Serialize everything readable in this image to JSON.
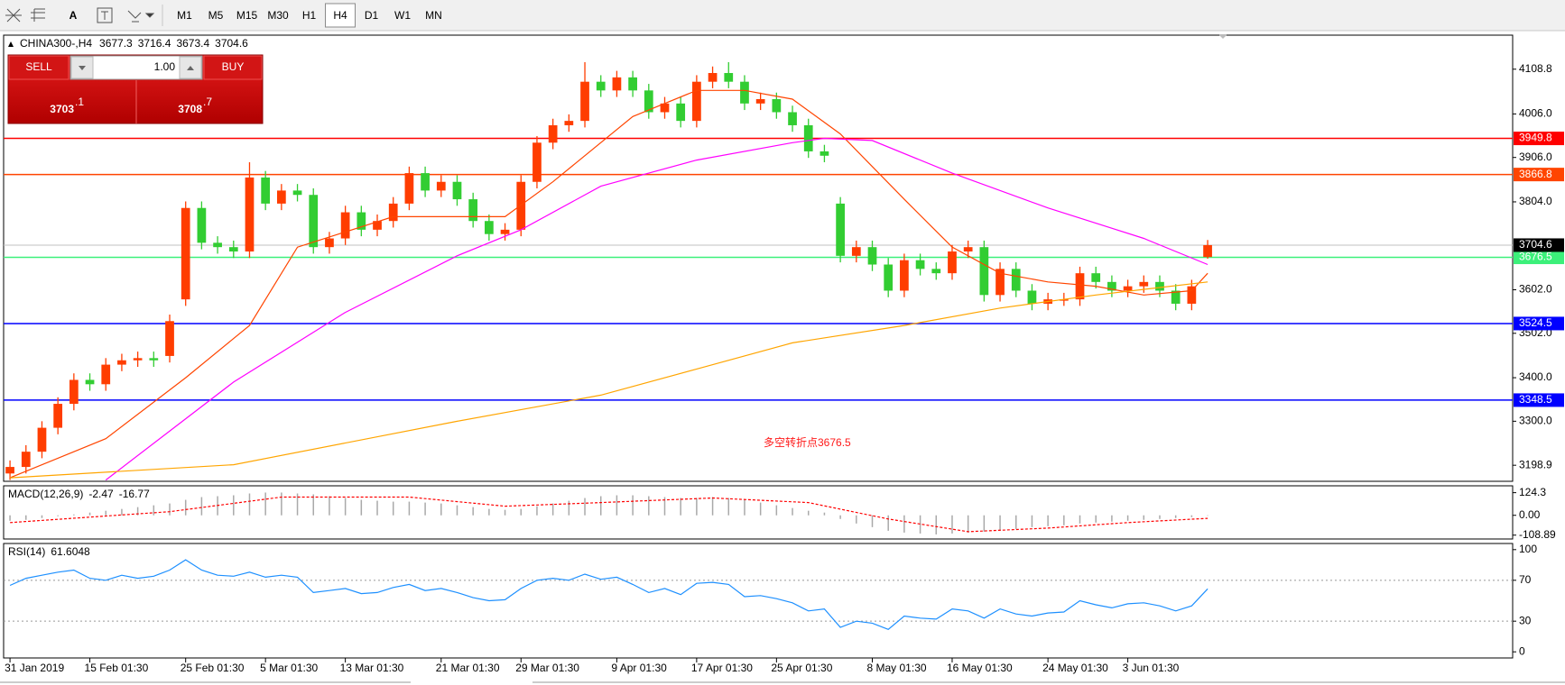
{
  "toolbar": {
    "text_tool": "A",
    "timeframes": [
      "M1",
      "M5",
      "M15",
      "M30",
      "H1",
      "H4",
      "D1",
      "W1",
      "MN"
    ],
    "active_index": 5
  },
  "trade_panel": {
    "sell": "SELL",
    "buy": "BUY",
    "lots": "1.00",
    "bid": [
      "3703",
      ".1"
    ],
    "ask": [
      "3708",
      ".7"
    ]
  },
  "chart_data": [
    {
      "type": "candlestick",
      "title": "CHINA300-,H4",
      "open": [
        3180,
        3195,
        3230,
        3285,
        3340,
        3395,
        3385,
        3430,
        3440,
        3445,
        3450,
        3580,
        3790,
        3710,
        3700,
        3690,
        3860,
        3800,
        3830,
        3820,
        3700,
        3720,
        3780,
        3740,
        3760,
        3800,
        3870,
        3830,
        3850,
        3810,
        3760,
        3730,
        3740,
        3850,
        3940,
        3980,
        3990,
        4080,
        4060,
        4090,
        4060,
        4010,
        4030,
        3990,
        4080,
        4100,
        4080,
        4030,
        4040,
        4010,
        3980,
        3920,
        3800,
        3680,
        3700,
        3660,
        3600,
        3670,
        3650,
        3640,
        3690,
        3700,
        3590,
        3650,
        3600,
        3570,
        3580,
        3580,
        3640,
        3620,
        3600,
        3610,
        3620,
        3600,
        3570,
        3677.3
      ],
      "high": [
        3210,
        3245,
        3300,
        3355,
        3410,
        3410,
        3445,
        3455,
        3460,
        3460,
        3545,
        3805,
        3805,
        3725,
        3715,
        3895,
        3875,
        3845,
        3845,
        3835,
        3735,
        3795,
        3795,
        3775,
        3815,
        3885,
        3885,
        3865,
        3865,
        3825,
        3775,
        3755,
        3865,
        3955,
        3995,
        4005,
        4125,
        4095,
        4105,
        4105,
        4075,
        4045,
        4045,
        4095,
        4115,
        4125,
        4095,
        4055,
        4055,
        4025,
        3995,
        3935,
        3815,
        3715,
        3715,
        3675,
        3685,
        3685,
        3665,
        3705,
        3715,
        3715,
        3665,
        3665,
        3615,
        3595,
        3595,
        3655,
        3655,
        3635,
        3625,
        3635,
        3635,
        3615,
        3625,
        3716.4
      ],
      "low": [
        3165,
        3180,
        3215,
        3270,
        3325,
        3370,
        3370,
        3415,
        3425,
        3425,
        3435,
        3565,
        3695,
        3685,
        3675,
        3675,
        3785,
        3785,
        3805,
        3685,
        3685,
        3705,
        3725,
        3725,
        3745,
        3785,
        3815,
        3815,
        3795,
        3745,
        3715,
        3715,
        3725,
        3835,
        3925,
        3965,
        3975,
        4045,
        4045,
        4045,
        3995,
        3995,
        3975,
        3975,
        4065,
        4065,
        4015,
        4015,
        3995,
        3965,
        3905,
        3895,
        3665,
        3665,
        3645,
        3585,
        3585,
        3635,
        3625,
        3625,
        3675,
        3575,
        3575,
        3585,
        3555,
        3555,
        3565,
        3565,
        3605,
        3585,
        3585,
        3595,
        3585,
        3555,
        3555,
        3673.4
      ],
      "close": [
        3195,
        3230,
        3285,
        3340,
        3395,
        3385,
        3430,
        3440,
        3445,
        3440,
        3530,
        3790,
        3710,
        3700,
        3690,
        3860,
        3800,
        3830,
        3820,
        3700,
        3720,
        3780,
        3740,
        3760,
        3800,
        3870,
        3830,
        3850,
        3810,
        3760,
        3730,
        3740,
        3850,
        3940,
        3980,
        3990,
        4080,
        4060,
        4090,
        4060,
        4010,
        4030,
        3990,
        4080,
        4100,
        4080,
        4030,
        4040,
        4010,
        3980,
        3920,
        3910,
        3680,
        3700,
        3660,
        3600,
        3670,
        3650,
        3640,
        3690,
        3700,
        3590,
        3650,
        3600,
        3570,
        3580,
        3580,
        3640,
        3620,
        3600,
        3610,
        3620,
        3600,
        3570,
        3610,
        3704.6
      ],
      "up_color": "#ff3d00",
      "down_color": "#32cd32",
      "xlim": [
        -0.4,
        94.1
      ],
      "ylim": [
        3162,
        4187
      ],
      "yticks": [
        4108.8,
        {
          "value": 4006,
          "label": "4006.0"
        },
        {
          "value": 3906,
          "label": "3906.0"
        },
        {
          "value": 3804,
          "label": "3804.0"
        },
        {
          "value": 3602,
          "label": "3602.0"
        },
        {
          "value": 3502,
          "label": "3502.0"
        },
        {
          "value": 3400,
          "label": "3400.0"
        },
        {
          "value": 3300,
          "label": "3300.0"
        },
        3198.9
      ],
      "xticks": [
        {
          "value": 0,
          "label": "31 Jan 2019"
        },
        {
          "value": 5,
          "label": "15 Feb 01:30"
        },
        {
          "value": 11,
          "label": "25 Feb 01:30"
        },
        {
          "value": 16,
          "label": "5 Mar 01:30"
        },
        {
          "value": 21,
          "label": "13 Mar 01:30"
        },
        {
          "value": 27,
          "label": "21 Mar 01:30"
        },
        {
          "value": 32,
          "label": "29 Mar 01:30"
        },
        {
          "value": 38,
          "label": "9 Apr 01:30"
        },
        {
          "value": 43,
          "label": "17 Apr 01:30"
        },
        {
          "value": 48,
          "label": "25 Apr 01:30"
        },
        {
          "value": 54,
          "label": "8 May 01:30"
        },
        {
          "value": 59,
          "label": "16 May 01:30"
        },
        {
          "value": 65,
          "label": "24 May 01:30"
        },
        {
          "value": 70,
          "label": "3 Jun 01:30"
        }
      ],
      "levels": [
        {
          "value": 3949.8,
          "color": "#ff0000"
        },
        {
          "value": 3866.8,
          "color": "#ff4500"
        },
        {
          "value": 3676.5,
          "color": "#3cf07a"
        },
        {
          "value": 3524.5,
          "color": "#0000ff"
        },
        {
          "value": 3348.5,
          "color": "#0000ff"
        }
      ],
      "last_price_color": "#c0c0c0",
      "overlays": [
        {
          "color": "#ff4500",
          "x": [
            0,
            6,
            11,
            15,
            18,
            24,
            31,
            34,
            39,
            43,
            46,
            49,
            52,
            56,
            59,
            62,
            65,
            68,
            71,
            74,
            75
          ],
          "values": [
            3170,
            3260,
            3400,
            3520,
            3700,
            3770,
            3770,
            3850,
            4000,
            4060,
            4060,
            4040,
            3960,
            3810,
            3700,
            3640,
            3620,
            3610,
            3590,
            3600,
            3640
          ]
        },
        {
          "color": "#ff00ff",
          "x": [
            6,
            14,
            21,
            28,
            32,
            37,
            43,
            49,
            51,
            54,
            59,
            65,
            71,
            75
          ],
          "values": [
            3165,
            3390,
            3550,
            3680,
            3740,
            3840,
            3900,
            3940,
            3950,
            3945,
            3870,
            3790,
            3720,
            3660
          ]
        },
        {
          "color": "#ffa500",
          "x": [
            0,
            14,
            28,
            37,
            43,
            49,
            56,
            62,
            68,
            75
          ],
          "values": [
            3170,
            3200,
            3300,
            3360,
            3420,
            3480,
            3520,
            3560,
            3590,
            3620
          ]
        }
      ],
      "annotation": "多空转折点3676.5",
      "annotation_color": "#ff1a1a"
    },
    {
      "type": "macd",
      "title": "MACD(12,26,9)",
      "values": [
        -30,
        -25,
        -15,
        -5,
        5,
        15,
        25,
        35,
        45,
        55,
        65,
        85,
        100,
        105,
        110,
        120,
        125,
        125,
        120,
        115,
        105,
        95,
        85,
        80,
        75,
        75,
        70,
        65,
        55,
        45,
        35,
        30,
        35,
        50,
        65,
        80,
        95,
        105,
        110,
        110,
        105,
        100,
        95,
        95,
        100,
        95,
        85,
        70,
        55,
        40,
        25,
        15,
        -20,
        -45,
        -65,
        -85,
        -95,
        -100,
        -105,
        -100,
        -95,
        -90,
        -85,
        -75,
        -65,
        -60,
        -55,
        -45,
        -40,
        -35,
        -30,
        -25,
        -20,
        -15,
        -10,
        -2.47
      ],
      "color": "#a9a9a9",
      "signal": {
        "color": "#ff0000",
        "x": [
          0,
          10,
          17,
          25,
          31,
          37,
          44,
          50,
          55,
          60,
          65,
          70,
          75
        ],
        "values": [
          -40,
          20,
          100,
          100,
          50,
          70,
          95,
          70,
          -20,
          -90,
          -70,
          -40,
          -16.77
        ]
      },
      "ylim": [
        -130,
        162
      ],
      "yticks": [
        124.3,
        {
          "value": 0,
          "label": "0.00"
        },
        -108.89
      ]
    },
    {
      "type": "line",
      "title": "RSI(14)",
      "values": [
        65,
        72,
        75,
        78,
        80,
        72,
        70,
        75,
        72,
        74,
        80,
        90,
        80,
        75,
        74,
        78,
        73,
        75,
        73,
        58,
        60,
        62,
        57,
        58,
        63,
        66,
        60,
        62,
        58,
        53,
        50,
        51,
        62,
        70,
        72,
        70,
        76,
        71,
        73,
        66,
        58,
        62,
        56,
        67,
        68,
        66,
        54,
        55,
        52,
        48,
        40,
        42,
        24,
        30,
        28,
        22,
        35,
        33,
        32,
        42,
        40,
        33,
        42,
        37,
        35,
        38,
        39,
        50,
        46,
        43,
        47,
        48,
        45,
        40,
        45,
        61.6048
      ],
      "color": "#1e90ff",
      "ylim": [
        -6,
        106
      ],
      "yticks": [
        100,
        70,
        30,
        0
      ],
      "grid_ticks": [
        1,
        2
      ]
    }
  ]
}
